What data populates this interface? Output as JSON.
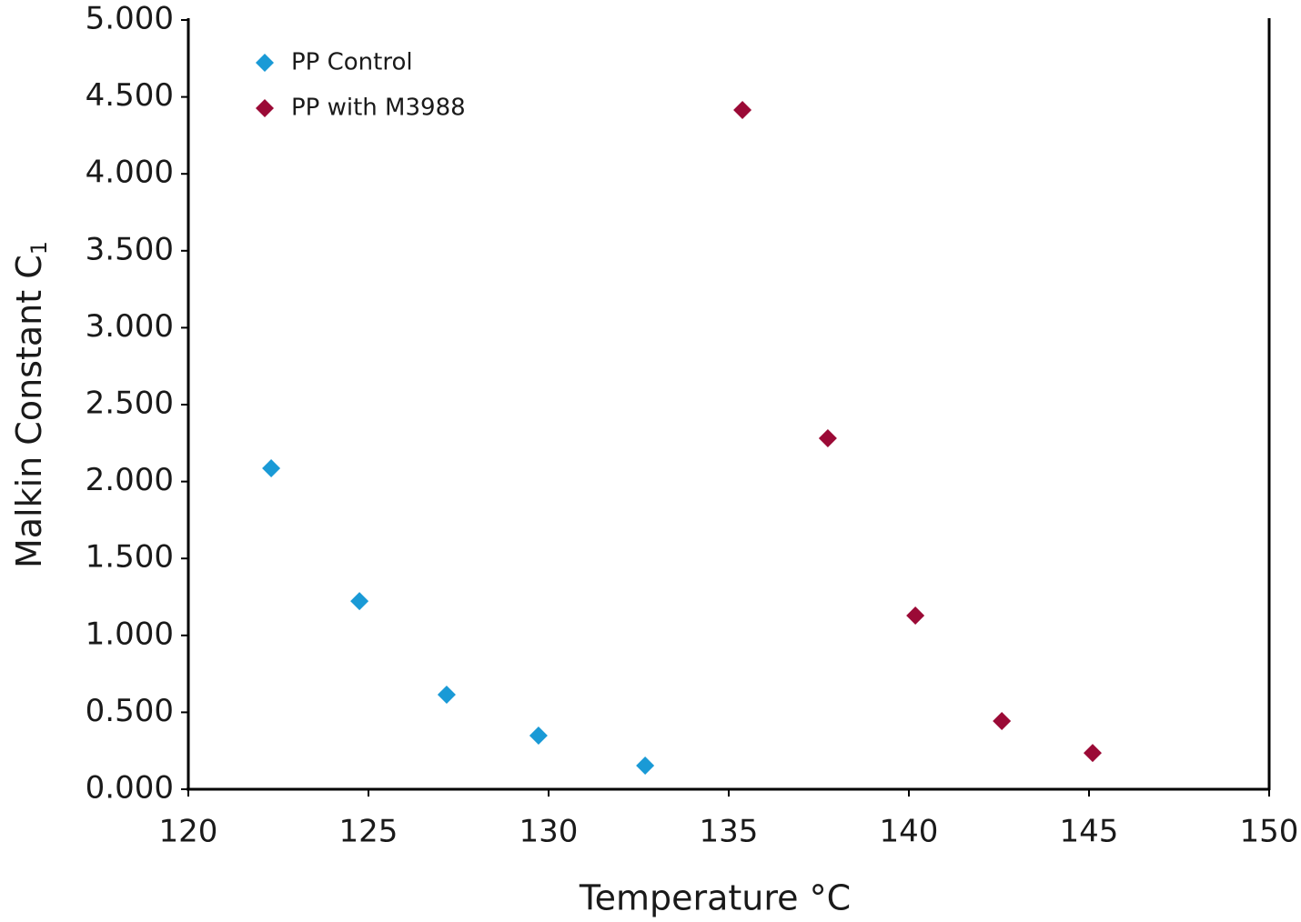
{
  "chart_data": {
    "type": "scatter",
    "x_label": "Temperature °C",
    "y_label": "Malkin Constant C",
    "y_label_subscript": "1",
    "series": [
      {
        "name": "PP Control",
        "color": "#1a9ad6",
        "marker": "diamond",
        "x": [
          122.3,
          124.75,
          127.17,
          129.72,
          132.68
        ],
        "values": [
          2.086,
          1.223,
          0.615,
          0.349,
          0.154
        ]
      },
      {
        "name": "PP with M3988",
        "color": "#9b0a36",
        "marker": "diamond",
        "x": [
          135.38,
          137.75,
          140.18,
          142.58,
          145.1
        ],
        "values": [
          4.415,
          2.281,
          1.129,
          0.443,
          0.236
        ]
      }
    ],
    "xlim": [
      120,
      150
    ],
    "xticks": [
      120,
      125,
      130,
      135,
      140,
      145,
      150
    ],
    "ylim": [
      0,
      5
    ],
    "yticks": [
      {
        "value": 0,
        "label": "0.000"
      },
      {
        "value": 0.5,
        "label": "0.500"
      },
      {
        "value": 1,
        "label": "1.000"
      },
      {
        "value": 1.5,
        "label": "1.500"
      },
      {
        "value": 2,
        "label": "2.000"
      },
      {
        "value": 2.5,
        "label": "2.500"
      },
      {
        "value": 3,
        "label": "3.000"
      },
      {
        "value": 3.5,
        "label": "3.500"
      },
      {
        "value": 4,
        "label": "4.000"
      },
      {
        "value": 4.5,
        "label": "4.500"
      },
      {
        "value": 5,
        "label": "5.000"
      }
    ],
    "grid": false,
    "legend": "top-left"
  }
}
